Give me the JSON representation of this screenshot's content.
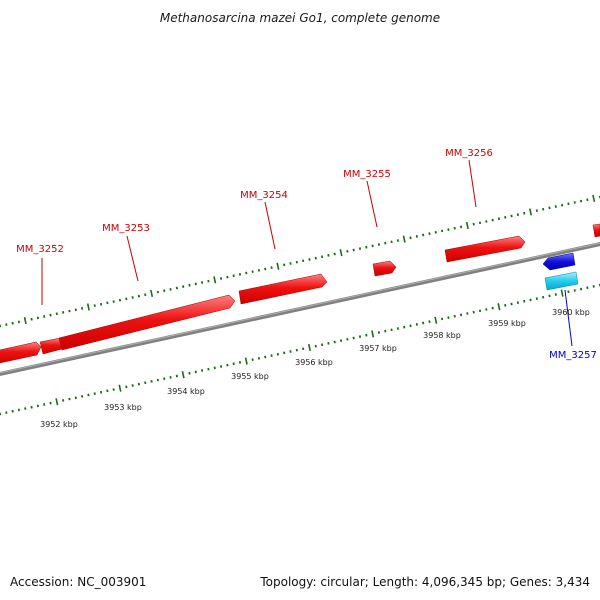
{
  "title": "Methanosarcina mazei Go1, complete genome",
  "footer": {
    "accession": "Accession: NC_003901",
    "stats": "Topology: circular; Length: 4,096,345 bp; Genes: 3,434"
  },
  "ruler_labels": [
    "3952 kbp",
    "3953 kbp",
    "3954 kbp",
    "3955 kbp",
    "3956 kbp",
    "3957 kbp",
    "3958 kbp",
    "3959 kbp",
    "3960 kbp"
  ],
  "genes": [
    {
      "name": "MM_3252",
      "strand": "forward"
    },
    {
      "name": "MM_3253",
      "strand": "forward"
    },
    {
      "name": "MM_3254",
      "strand": "forward"
    },
    {
      "name": "MM_3255",
      "strand": "forward"
    },
    {
      "name": "MM_3256",
      "strand": "forward"
    },
    {
      "name": "MM_3257",
      "strand": "reverse"
    }
  ],
  "colors": {
    "forward_gene": "#ee1111",
    "forward_label": "#cc0000",
    "reverse_gene": "#1111dd",
    "reverse_label": "#0000cc",
    "rna_feature": "#22ccee",
    "backbone": "#808080",
    "tick": "#1a6b1a"
  }
}
